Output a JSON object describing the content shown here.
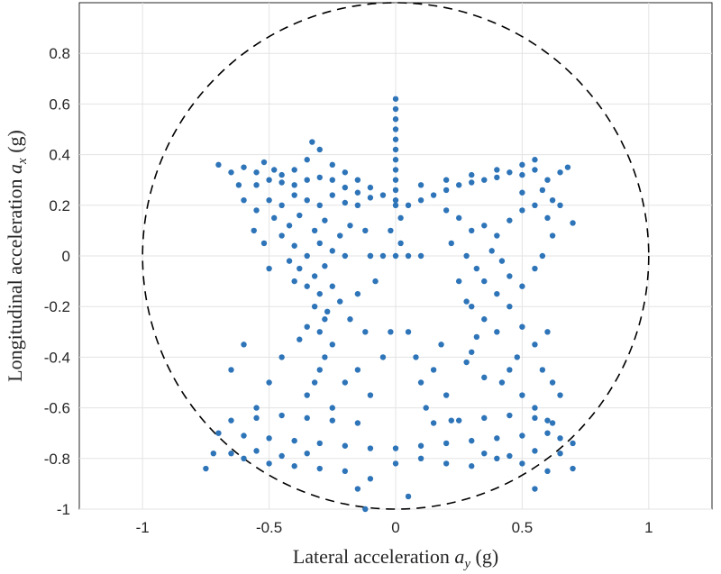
{
  "chart_data": {
    "type": "scatter",
    "xlabel": "Lateral acceleration a_y (g)",
    "ylabel": "Longitudinal acceleration a_x (g)",
    "xlabel_parts": {
      "pre": "Lateral acceleration ",
      "var": "a",
      "sub": "y",
      "post": " (g)"
    },
    "ylabel_parts": {
      "pre": "Longitudinal acceleration ",
      "var": "a",
      "sub": "x",
      "post": " (g)"
    },
    "xlim": [
      -1.25,
      1.25
    ],
    "ylim": [
      -1,
      1
    ],
    "xticks": [
      -1,
      -0.5,
      0,
      0.5,
      1
    ],
    "xtick_labels": [
      "-1",
      "-0.5",
      "0",
      "0.5",
      "1"
    ],
    "yticks": [
      -1,
      -0.8,
      -0.6,
      -0.4,
      -0.2,
      0,
      0.2,
      0.4,
      0.6,
      0.8
    ],
    "ytick_labels": [
      "-1",
      "-0.8",
      "-0.6",
      "-0.4",
      "-0.2",
      "0",
      "0.2",
      "0.4",
      "0.6",
      "0.8"
    ],
    "grid": true,
    "friction_circle": {
      "center": [
        0,
        0
      ],
      "radius": 1,
      "style": "dashed",
      "color": "#000000"
    },
    "marker_color": "#2e74b8",
    "series": [
      {
        "points": [
          [
            0,
            0.62
          ],
          [
            0,
            0.58
          ],
          [
            0,
            0.54
          ],
          [
            0,
            0.5
          ],
          [
            0,
            0.46
          ],
          [
            0,
            0.42
          ],
          [
            0,
            0.38
          ],
          [
            0,
            0.34
          ],
          [
            0,
            0.3
          ],
          [
            0,
            0.26
          ],
          [
            0,
            0.22
          ],
          [
            0,
            0.2
          ],
          [
            -0.7,
            0.36
          ],
          [
            -0.65,
            0.33
          ],
          [
            -0.6,
            0.35
          ],
          [
            -0.55,
            0.33
          ],
          [
            -0.52,
            0.37
          ],
          [
            -0.48,
            0.34
          ],
          [
            -0.45,
            0.32
          ],
          [
            -0.4,
            0.34
          ],
          [
            -0.35,
            0.38
          ],
          [
            -0.3,
            0.42
          ],
          [
            -0.33,
            0.45
          ],
          [
            -0.25,
            0.36
          ],
          [
            -0.2,
            0.33
          ],
          [
            -0.15,
            0.3
          ],
          [
            -0.1,
            0.27
          ],
          [
            -0.05,
            0.24
          ],
          [
            -0.55,
            0.28
          ],
          [
            -0.5,
            0.3
          ],
          [
            -0.45,
            0.29
          ],
          [
            -0.4,
            0.28
          ],
          [
            -0.35,
            0.3
          ],
          [
            -0.3,
            0.31
          ],
          [
            -0.25,
            0.3
          ],
          [
            -0.2,
            0.27
          ],
          [
            -0.15,
            0.25
          ],
          [
            -0.1,
            0.23
          ],
          [
            -0.5,
            0.22
          ],
          [
            -0.45,
            0.2
          ],
          [
            -0.4,
            0.24
          ],
          [
            -0.35,
            0.22
          ],
          [
            -0.3,
            0.2
          ],
          [
            -0.25,
            0.24
          ],
          [
            -0.2,
            0.21
          ],
          [
            -0.15,
            0.2
          ],
          [
            -0.55,
            0.18
          ],
          [
            -0.48,
            0.15
          ],
          [
            -0.42,
            0.12
          ],
          [
            -0.38,
            0.16
          ],
          [
            -0.32,
            0.1
          ],
          [
            -0.28,
            0.14
          ],
          [
            -0.22,
            0.08
          ],
          [
            -0.18,
            0.12
          ],
          [
            -0.45,
            0.08
          ],
          [
            -0.4,
            0.04
          ],
          [
            -0.35,
            0.0
          ],
          [
            -0.3,
            0.05
          ],
          [
            -0.25,
            0.02
          ],
          [
            -0.2,
            0.0
          ],
          [
            -0.42,
            -0.02
          ],
          [
            -0.38,
            -0.05
          ],
          [
            -0.32,
            -0.08
          ],
          [
            -0.28,
            -0.04
          ],
          [
            -0.4,
            -0.1
          ],
          [
            -0.35,
            -0.12
          ],
          [
            -0.3,
            -0.15
          ],
          [
            -0.25,
            -0.12
          ],
          [
            -0.22,
            -0.18
          ],
          [
            -0.32,
            -0.2
          ],
          [
            -0.28,
            -0.25
          ],
          [
            -0.35,
            -0.28
          ],
          [
            -0.3,
            -0.3
          ],
          [
            -0.38,
            -0.33
          ],
          [
            -0.27,
            -0.22
          ],
          [
            -0.5,
            -0.05
          ],
          [
            -0.52,
            0.05
          ],
          [
            -0.56,
            0.1
          ],
          [
            -0.6,
            0.22
          ],
          [
            -0.62,
            0.28
          ],
          [
            -0.12,
            0.1
          ],
          [
            -0.1,
            0.0
          ],
          [
            -0.08,
            -0.1
          ],
          [
            -0.15,
            -0.15
          ],
          [
            -0.18,
            -0.25
          ],
          [
            -0.12,
            -0.3
          ],
          [
            0.05,
            0.2
          ],
          [
            0.1,
            0.22
          ],
          [
            0.15,
            0.24
          ],
          [
            0.2,
            0.26
          ],
          [
            0.25,
            0.28
          ],
          [
            0.3,
            0.29
          ],
          [
            0.35,
            0.3
          ],
          [
            0.4,
            0.31
          ],
          [
            0.45,
            0.33
          ],
          [
            0.5,
            0.32
          ],
          [
            0.55,
            0.34
          ],
          [
            0.6,
            0.3
          ],
          [
            0.65,
            0.33
          ],
          [
            0.68,
            0.35
          ],
          [
            0.1,
            0.28
          ],
          [
            0.2,
            0.3
          ],
          [
            0.3,
            0.32
          ],
          [
            0.4,
            0.34
          ],
          [
            0.5,
            0.36
          ],
          [
            0.55,
            0.38
          ],
          [
            0.62,
            0.22
          ],
          [
            0.58,
            0.26
          ],
          [
            0.5,
            0.25
          ],
          [
            0.2,
            0.18
          ],
          [
            0.25,
            0.15
          ],
          [
            0.3,
            0.1
          ],
          [
            0.35,
            0.12
          ],
          [
            0.4,
            0.08
          ],
          [
            0.45,
            0.14
          ],
          [
            0.5,
            0.18
          ],
          [
            0.55,
            0.2
          ],
          [
            0.6,
            0.15
          ],
          [
            0.22,
            0.05
          ],
          [
            0.28,
            0.0
          ],
          [
            0.32,
            -0.05
          ],
          [
            0.38,
            0.02
          ],
          [
            0.42,
            -0.02
          ],
          [
            0.35,
            -0.1
          ],
          [
            0.4,
            -0.15
          ],
          [
            0.45,
            -0.08
          ],
          [
            0.3,
            -0.2
          ],
          [
            0.35,
            -0.25
          ],
          [
            0.4,
            -0.3
          ],
          [
            0.45,
            -0.2
          ],
          [
            0.5,
            -0.12
          ],
          [
            0.55,
            -0.05
          ],
          [
            0.5,
            -0.28
          ],
          [
            0.55,
            -0.35
          ],
          [
            0.6,
            -0.3
          ],
          [
            0.58,
            -0.45
          ],
          [
            0.62,
            -0.5
          ],
          [
            0.25,
            -0.1
          ],
          [
            0.28,
            -0.18
          ],
          [
            0.32,
            -0.32
          ],
          [
            0.3,
            -0.38
          ],
          [
            0.28,
            -0.42
          ],
          [
            0.7,
            0.13
          ],
          [
            0.65,
            0.2
          ],
          [
            0.62,
            0.08
          ],
          [
            0.58,
            0.0
          ],
          [
            -0.05,
            0.0
          ],
          [
            0.05,
            0.0
          ],
          [
            0.1,
            0.0
          ],
          [
            -0.1,
            0.0
          ],
          [
            0.02,
            0.05
          ],
          [
            -0.02,
            0.1
          ],
          [
            0.02,
            0.15
          ],
          [
            0.0,
            0.0
          ],
          [
            -0.25,
            -0.35
          ],
          [
            -0.28,
            -0.4
          ],
          [
            -0.3,
            -0.45
          ],
          [
            -0.32,
            -0.5
          ],
          [
            -0.35,
            -0.55
          ],
          [
            -0.25,
            -0.6
          ],
          [
            -0.2,
            -0.5
          ],
          [
            -0.45,
            -0.4
          ],
          [
            -0.5,
            -0.5
          ],
          [
            -0.55,
            -0.6
          ],
          [
            -0.6,
            -0.35
          ],
          [
            -0.65,
            -0.45
          ],
          [
            -0.15,
            -0.45
          ],
          [
            -0.1,
            -0.55
          ],
          [
            -0.05,
            -0.4
          ],
          [
            -0.02,
            -0.3
          ],
          [
            0.05,
            -0.3
          ],
          [
            0.08,
            -0.4
          ],
          [
            0.1,
            -0.5
          ],
          [
            0.12,
            -0.6
          ],
          [
            0.15,
            -0.45
          ],
          [
            0.2,
            -0.55
          ],
          [
            0.18,
            -0.35
          ],
          [
            0.22,
            -0.65
          ],
          [
            0.45,
            -0.45
          ],
          [
            0.5,
            -0.55
          ],
          [
            0.55,
            -0.6
          ],
          [
            0.6,
            -0.65
          ],
          [
            0.65,
            -0.55
          ],
          [
            0.48,
            -0.4
          ],
          [
            0.42,
            -0.5
          ],
          [
            0.35,
            -0.48
          ],
          [
            -0.7,
            -0.7
          ],
          [
            -0.6,
            -0.71
          ],
          [
            -0.5,
            -0.72
          ],
          [
            -0.4,
            -0.73
          ],
          [
            -0.3,
            -0.74
          ],
          [
            -0.2,
            -0.75
          ],
          [
            -0.1,
            -0.76
          ],
          [
            0.0,
            -0.76
          ],
          [
            0.1,
            -0.75
          ],
          [
            0.2,
            -0.74
          ],
          [
            0.3,
            -0.73
          ],
          [
            0.4,
            -0.72
          ],
          [
            0.5,
            -0.71
          ],
          [
            0.6,
            -0.7
          ],
          [
            0.65,
            -0.72
          ],
          [
            0.7,
            -0.74
          ],
          [
            -0.65,
            -0.65
          ],
          [
            -0.55,
            -0.64
          ],
          [
            -0.45,
            -0.63
          ],
          [
            -0.35,
            -0.64
          ],
          [
            -0.25,
            -0.65
          ],
          [
            -0.15,
            -0.66
          ],
          [
            0.15,
            -0.66
          ],
          [
            0.25,
            -0.65
          ],
          [
            0.35,
            -0.64
          ],
          [
            0.45,
            -0.63
          ],
          [
            0.55,
            -0.64
          ],
          [
            0.62,
            -0.66
          ],
          [
            -0.75,
            -0.84
          ],
          [
            -0.72,
            -0.78
          ],
          [
            -0.6,
            -0.8
          ],
          [
            -0.5,
            -0.82
          ],
          [
            -0.4,
            -0.83
          ],
          [
            -0.3,
            -0.84
          ],
          [
            -0.2,
            -0.85
          ],
          [
            -0.1,
            -0.88
          ],
          [
            0.0,
            -0.82
          ],
          [
            0.1,
            -0.8
          ],
          [
            0.2,
            -0.82
          ],
          [
            0.3,
            -0.83
          ],
          [
            0.4,
            -0.8
          ],
          [
            0.5,
            -0.82
          ],
          [
            0.6,
            -0.85
          ],
          [
            0.7,
            -0.84
          ],
          [
            -0.65,
            -0.78
          ],
          [
            -0.55,
            -0.77
          ],
          [
            -0.45,
            -0.79
          ],
          [
            -0.35,
            -0.78
          ],
          [
            0.35,
            -0.78
          ],
          [
            0.45,
            -0.79
          ],
          [
            0.55,
            -0.77
          ],
          [
            0.65,
            -0.78
          ],
          [
            -0.15,
            -0.92
          ],
          [
            -0.12,
            -1.0
          ],
          [
            0.05,
            -0.95
          ],
          [
            0.55,
            -0.92
          ]
        ]
      }
    ]
  }
}
